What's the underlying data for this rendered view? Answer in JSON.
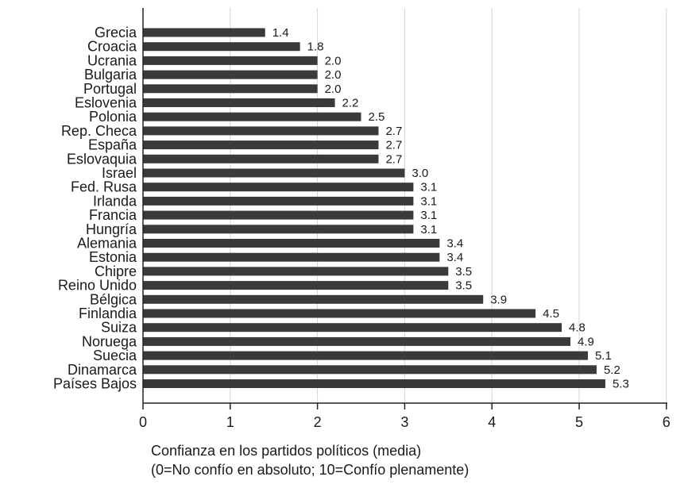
{
  "chart_data": {
    "type": "bar",
    "orientation": "horizontal",
    "categories": [
      "Grecia",
      "Croacia",
      "Ucrania",
      "Bulgaria",
      "Portugal",
      "Eslovenia",
      "Polonia",
      "Rep. Checa",
      "España",
      "Eslovaquia",
      "Israel",
      "Fed. Rusa",
      "Irlanda",
      "Francia",
      "Hungría",
      "Alemania",
      "Estonia",
      "Chipre",
      "Reino Unido",
      "Bélgica",
      "Finlandia",
      "Suiza",
      "Noruega",
      "Suecia",
      "Dinamarca",
      "Países Bajos"
    ],
    "values": [
      1.4,
      1.8,
      2.0,
      2.0,
      2.0,
      2.2,
      2.5,
      2.7,
      2.7,
      2.7,
      3.0,
      3.1,
      3.1,
      3.1,
      3.1,
      3.4,
      3.4,
      3.5,
      3.5,
      3.9,
      4.5,
      4.8,
      4.9,
      5.1,
      5.2,
      5.3
    ],
    "value_labels": [
      "1.4",
      "1.8",
      "2.0",
      "2.0",
      "2.0",
      "2.2",
      "2.5",
      "2.7",
      "2.7",
      "2.7",
      "3.0",
      "3.1",
      "3.1",
      "3.1",
      "3.1",
      "3.4",
      "3.4",
      "3.5",
      "3.5",
      "3.9",
      "4.5",
      "4.8",
      "4.9",
      "5.1",
      "5.2",
      "5.3"
    ],
    "xlim": [
      0,
      6
    ],
    "xticks": [
      "0",
      "1",
      "2",
      "3",
      "4",
      "5",
      "6"
    ],
    "xlabel_line1": "Confianza en los partidos políticos (media)",
    "xlabel_line2": "(0=No confío en absoluto; 10=Confío plenamente)",
    "grid": "vertical",
    "bar_color": "#3a3a3a",
    "grid_color": "#d4d4d4"
  }
}
